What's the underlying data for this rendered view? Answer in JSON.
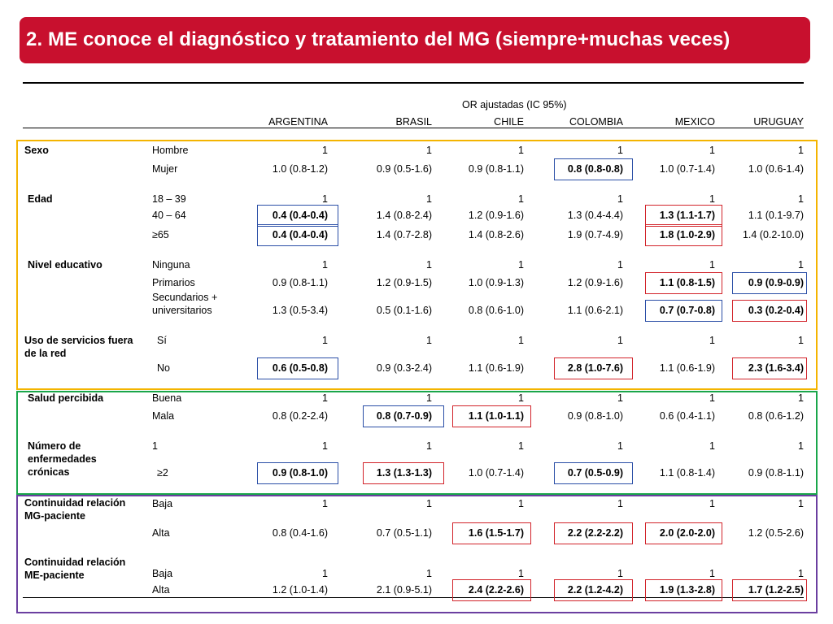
{
  "title": "2. ME conoce el diagnóstico y tratamiento del MG (siempre+muchas veces)",
  "subheader": "OR ajustadas (IC 95%)",
  "colors": {
    "banner": "#c8102e",
    "blue_box": "#2a4ea6",
    "red_box": "#d2232a",
    "section_yellow": "#f4b400",
    "section_green": "#1aa64a",
    "section_purple": "#6b3fa0"
  },
  "columns": [
    "ARGENTINA",
    "BRASIL",
    "CHILE",
    "COLOMBIA",
    "MEXICO",
    "URUGUAY"
  ],
  "groups": [
    {
      "label": "Sexo",
      "rows": [
        {
          "label": "Hombre",
          "values": [
            "1",
            "1",
            "1",
            "1",
            "1",
            "1"
          ]
        },
        {
          "label": "Mujer",
          "values": [
            "1.0 (0.8-1.2)",
            "0.9 (0.5-1.6)",
            "0.9 (0.8-1.1)",
            "0.8 (0.8-0.8)",
            "1.0 (0.7-1.4)",
            "1.0 (0.6-1.4)"
          ]
        }
      ]
    },
    {
      "label": "Edad",
      "rows": [
        {
          "label": "18 – 39",
          "values": [
            "1",
            "1",
            "1",
            "1",
            "1",
            "1"
          ]
        },
        {
          "label": "40 – 64",
          "values": [
            "0.4 (0.4-0.4)",
            "1.4 (0.8-2.4)",
            "1.2 (0.9-1.6)",
            "1.3 (0.4-4.4)",
            "1.3 (1.1-1.7)",
            "1.1 (0.1-9.7)"
          ]
        },
        {
          "label": "≥65",
          "values": [
            "0.4 (0.4-0.4)",
            "1.4 (0.7-2.8)",
            "1.4 (0.8-2.6)",
            "1.9 (0.7-4.9)",
            "1.8 (1.0-2.9)",
            "1.4 (0.2-10.0)"
          ]
        }
      ]
    },
    {
      "label": "Nivel educativo",
      "rows": [
        {
          "label": "Ninguna",
          "values": [
            "1",
            "1",
            "1",
            "1",
            "1",
            "1"
          ]
        },
        {
          "label": "Primarios",
          "values": [
            "0.9 (0.8-1.1)",
            "1.2 (0.9-1.5)",
            "1.0 (0.9-1.3)",
            "1.2 (0.9-1.6)",
            "1.1 (0.8-1.5)",
            "0.9 (0.9-0.9)"
          ]
        },
        {
          "label_line1": "Secundarios +",
          "label_line2": "universitarios",
          "values": [
            "1.3 (0.5-3.4)",
            "0.5 (0.1-1.6)",
            "0.8 (0.6-1.0)",
            "1.1 (0.6-2.1)",
            "0.7 (0.7-0.8)",
            "0.3 (0.2-0.4)"
          ]
        }
      ]
    },
    {
      "label_line1": "Uso de servicios fuera",
      "label_line2": "de la red",
      "rows": [
        {
          "label": "Sí",
          "values": [
            "1",
            "1",
            "1",
            "1",
            "1",
            "1"
          ]
        },
        {
          "label": "No",
          "values": [
            "0.6 (0.5-0.8)",
            "0.9 (0.3-2.4)",
            "1.1 (0.6-1.9)",
            "2.8 (1.0-7.6)",
            "1.1 (0.6-1.9)",
            "2.3 (1.6-3.4)"
          ]
        }
      ]
    },
    {
      "label": "Salud percibida",
      "rows": [
        {
          "label": "Buena",
          "values": [
            "1",
            "1",
            "1",
            "1",
            "1",
            "1"
          ]
        },
        {
          "label": "Mala",
          "values": [
            "0.8 (0.2-2.4)",
            "0.8 (0.7-0.9)",
            "1.1 (1.0-1.1)",
            "0.9 (0.8-1.0)",
            "0.6 (0.4-1.1)",
            "0.8 (0.6-1.2)"
          ]
        }
      ]
    },
    {
      "label_line1": "Número de",
      "label_line2": "enfermedades",
      "label_line3": "crónicas",
      "rows": [
        {
          "label": "1",
          "values": [
            "1",
            "1",
            "1",
            "1",
            "1",
            "1"
          ]
        },
        {
          "label": "≥2",
          "values": [
            "0.9 (0.8-1.0)",
            "1.3 (1.3-1.3)",
            "1.0 (0.7-1.4)",
            "0.7 (0.5-0.9)",
            "1.1 (0.8-1.4)",
            "0.9 (0.8-1.1)"
          ]
        }
      ]
    },
    {
      "label_line1": "Continuidad relación",
      "label_line2": "MG-paciente",
      "rows": [
        {
          "label": "Baja",
          "values": [
            "1",
            "1",
            "1",
            "1",
            "1",
            "1"
          ]
        },
        {
          "label": "Alta",
          "values": [
            "0.8 (0.4-1.6)",
            "0.7 (0.5-1.1)",
            "1.6 (1.5-1.7)",
            "2.2 (2.2-2.2)",
            "2.0 (2.0-2.0)",
            "1.2 (0.5-2.6)"
          ]
        }
      ]
    },
    {
      "label_line1": "Continuidad relación",
      "label_line2": "ME-paciente",
      "rows": [
        {
          "label": "Baja",
          "values": [
            "1",
            "1",
            "1",
            "1",
            "1",
            "1"
          ]
        },
        {
          "label": "Alta",
          "values": [
            "1.2 (1.0-1.4)",
            "2.1 (0.9-5.1)",
            "2.4 (2.2-2.6)",
            "2.2 (1.2-4.2)",
            "1.9 (1.3-2.8)",
            "1.7 (1.2-2.5)"
          ]
        }
      ]
    }
  ]
}
